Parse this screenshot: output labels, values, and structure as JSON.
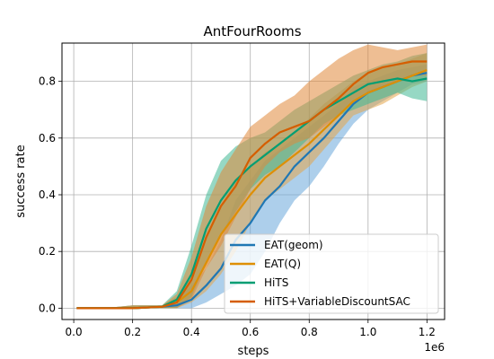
{
  "chart_data": {
    "type": "line",
    "title": "AntFourRooms",
    "xlabel": "steps",
    "ylabel": "success rate",
    "x_offset_label": "1e6",
    "xlim": [
      -0.04,
      1.26
    ],
    "ylim": [
      -0.04,
      0.935
    ],
    "xticks": [
      0.0,
      0.2,
      0.4,
      0.6,
      0.8,
      1.0,
      1.2
    ],
    "xtick_labels": [
      "0.0",
      "0.2",
      "0.4",
      "0.6",
      "0.8",
      "1.0",
      "1.2"
    ],
    "yticks": [
      0.0,
      0.2,
      0.4,
      0.6,
      0.8
    ],
    "ytick_labels": [
      "0.0",
      "0.2",
      "0.4",
      "0.6",
      "0.8"
    ],
    "grid": true,
    "legend_position": "lower-right",
    "x": [
      0.01,
      0.1,
      0.2,
      0.3,
      0.35,
      0.4,
      0.45,
      0.5,
      0.55,
      0.6,
      0.65,
      0.7,
      0.75,
      0.8,
      0.85,
      0.9,
      0.95,
      1.0,
      1.05,
      1.1,
      1.15,
      1.2
    ],
    "series": [
      {
        "name": "EAT(geom)",
        "color": "#1f77b4",
        "band_color": "#6aa8da",
        "values": [
          0.0,
          0.0,
          0.0,
          0.005,
          0.01,
          0.03,
          0.08,
          0.14,
          0.24,
          0.3,
          0.38,
          0.43,
          0.5,
          0.55,
          0.6,
          0.66,
          0.72,
          0.76,
          0.78,
          0.8,
          0.82,
          0.83
        ],
        "lower": [
          0.0,
          0.0,
          0.0,
          0.0,
          0.0,
          0.0,
          0.02,
          0.05,
          0.08,
          0.12,
          0.2,
          0.3,
          0.38,
          0.43,
          0.5,
          0.58,
          0.65,
          0.7,
          0.73,
          0.76,
          0.79,
          0.8
        ],
        "upper": [
          0.0,
          0.0,
          0.01,
          0.01,
          0.03,
          0.08,
          0.14,
          0.24,
          0.38,
          0.45,
          0.52,
          0.56,
          0.6,
          0.64,
          0.68,
          0.72,
          0.78,
          0.8,
          0.82,
          0.84,
          0.85,
          0.86
        ]
      },
      {
        "name": "EAT(Q)",
        "color": "#de8f05",
        "band_color": "#e3a54a",
        "values": [
          0.0,
          0.0,
          0.0,
          0.005,
          0.02,
          0.06,
          0.16,
          0.26,
          0.33,
          0.4,
          0.46,
          0.5,
          0.54,
          0.58,
          0.63,
          0.68,
          0.73,
          0.76,
          0.78,
          0.8,
          0.82,
          0.84
        ],
        "lower": [
          0.0,
          0.0,
          0.0,
          0.0,
          0.0,
          0.02,
          0.06,
          0.12,
          0.2,
          0.3,
          0.38,
          0.42,
          0.46,
          0.5,
          0.56,
          0.62,
          0.68,
          0.7,
          0.72,
          0.75,
          0.78,
          0.8
        ],
        "upper": [
          0.0,
          0.0,
          0.01,
          0.01,
          0.04,
          0.12,
          0.25,
          0.36,
          0.45,
          0.5,
          0.55,
          0.58,
          0.62,
          0.67,
          0.72,
          0.76,
          0.8,
          0.83,
          0.85,
          0.86,
          0.88,
          0.9
        ]
      },
      {
        "name": "HiTS",
        "color": "#029e73",
        "band_color": "#3fb893",
        "values": [
          0.0,
          0.0,
          0.0,
          0.005,
          0.03,
          0.12,
          0.28,
          0.38,
          0.45,
          0.5,
          0.54,
          0.58,
          0.62,
          0.66,
          0.7,
          0.73,
          0.76,
          0.79,
          0.8,
          0.81,
          0.8,
          0.81
        ],
        "lower": [
          0.0,
          0.0,
          0.0,
          0.0,
          0.0,
          0.04,
          0.16,
          0.26,
          0.34,
          0.42,
          0.47,
          0.5,
          0.55,
          0.6,
          0.65,
          0.68,
          0.7,
          0.72,
          0.74,
          0.76,
          0.74,
          0.73
        ],
        "upper": [
          0.0,
          0.0,
          0.01,
          0.01,
          0.06,
          0.22,
          0.4,
          0.52,
          0.57,
          0.6,
          0.62,
          0.66,
          0.7,
          0.73,
          0.76,
          0.79,
          0.82,
          0.84,
          0.86,
          0.87,
          0.89,
          0.9
        ]
      },
      {
        "name": "HiTS+VariableDiscountSAC",
        "color": "#d55e00",
        "band_color": "#e0893a",
        "values": [
          0.0,
          0.0,
          0.0,
          0.005,
          0.02,
          0.1,
          0.25,
          0.36,
          0.43,
          0.53,
          0.58,
          0.62,
          0.64,
          0.66,
          0.7,
          0.74,
          0.79,
          0.83,
          0.85,
          0.86,
          0.87,
          0.87
        ],
        "lower": [
          0.0,
          0.0,
          0.0,
          0.0,
          0.0,
          0.03,
          0.14,
          0.22,
          0.32,
          0.42,
          0.5,
          0.55,
          0.58,
          0.6,
          0.64,
          0.68,
          0.73,
          0.76,
          0.78,
          0.8,
          0.82,
          0.82
        ],
        "upper": [
          0.0,
          0.0,
          0.01,
          0.01,
          0.05,
          0.18,
          0.36,
          0.48,
          0.56,
          0.64,
          0.68,
          0.72,
          0.75,
          0.8,
          0.84,
          0.88,
          0.91,
          0.93,
          0.92,
          0.91,
          0.92,
          0.93
        ]
      }
    ]
  }
}
